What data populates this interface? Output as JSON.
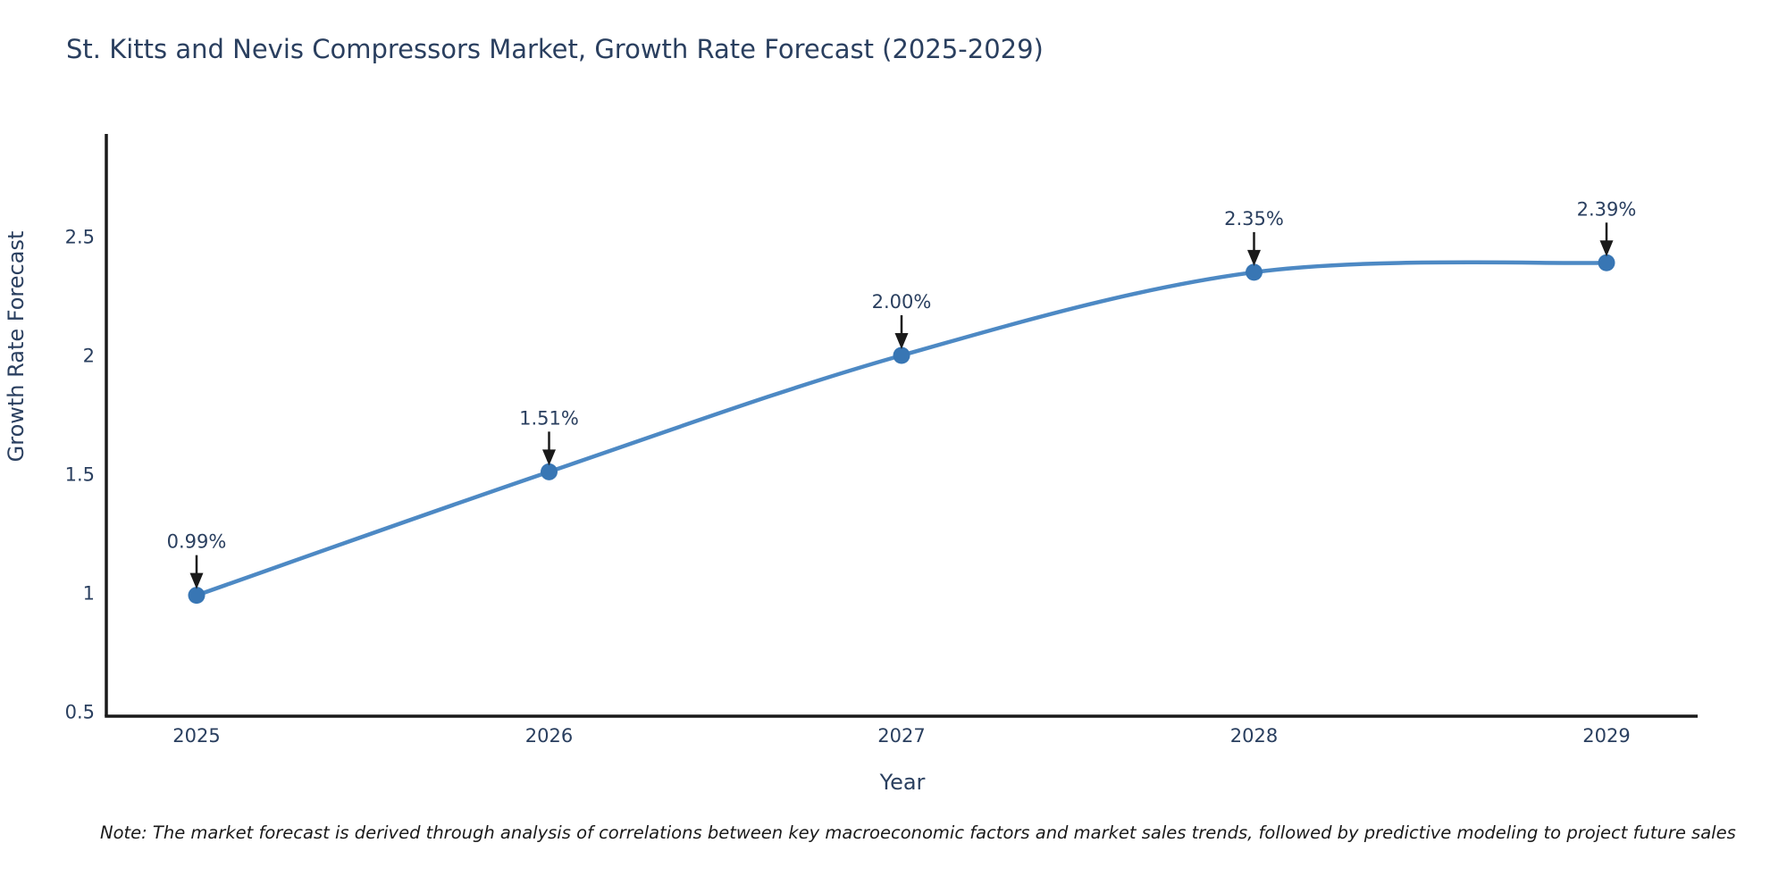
{
  "page": {
    "note": "Note: The market forecast is derived through analysis of correlations between key macroeconomic factors and market sales trends, followed by predictive modeling to project future sales"
  },
  "chart_data": {
    "type": "line",
    "line_shape": "spline",
    "title": "St. Kitts and Nevis Compressors Market, Growth Rate Forecast (2025-2029)",
    "xlabel": "Year",
    "ylabel": "Growth Rate Forecast",
    "x": [
      2025,
      2026,
      2027,
      2028,
      2029
    ],
    "series": [
      {
        "name": "Growth Rate Forecast",
        "values": [
          0.99,
          1.51,
          2.0,
          2.35,
          2.39
        ]
      }
    ],
    "point_labels": [
      "0.99%",
      "1.51%",
      "2.00%",
      "2.35%",
      "2.39%"
    ],
    "yticks": [
      0.5,
      1,
      1.5,
      2,
      2.5
    ],
    "ytick_labels": [
      "0.5",
      "1",
      "1.5",
      "2",
      "2.5"
    ],
    "ylim": [
      0.49,
      2.95
    ],
    "grid": false,
    "legend": "none",
    "colors": {
      "line": "#4d89c4",
      "marker": "#3876b4",
      "axis_line": "#1a1a1a",
      "text": "#2a3f5f",
      "annotation_arrow": "#1a1a1a"
    }
  }
}
